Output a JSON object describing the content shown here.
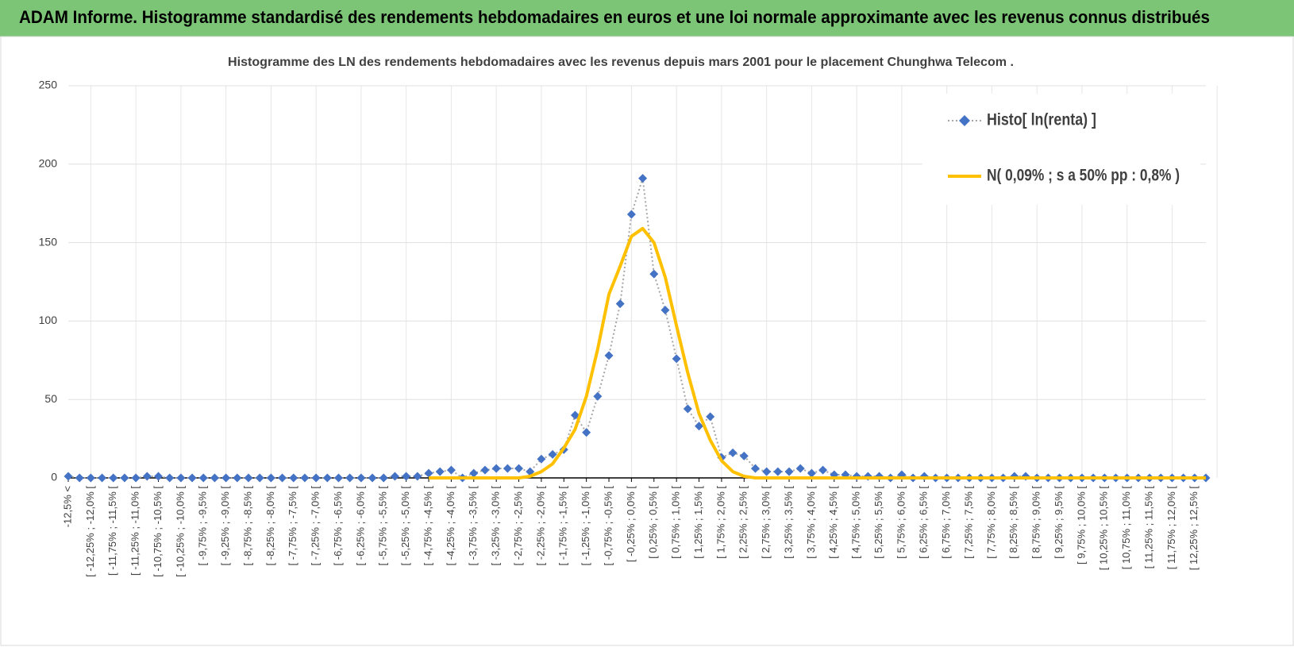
{
  "header": {
    "title": "ADAM Informe. Histogramme standardisé des rendements hebdomadaires en euros et une loi normale approximante avec les revenus connus distribués"
  },
  "chart_data": {
    "type": "line",
    "title": "Histogramme  des LN des rendements hebdomadaires avec les revenus depuis mars 2001 pour le placement Chunghwa Telecom .",
    "categories": [
      "-12,5% <",
      null,
      "[ -12,25% ; -12,0% [",
      null,
      "[ -11,75% ; -11,5% [",
      null,
      "[ -11,25% ; -11,0% [",
      null,
      "[ -10,75% ; -10,5% [",
      null,
      "[ -10,25% ; -10,0% [",
      null,
      "[ -9,75% ; -9,5% [",
      null,
      "[ -9,25% ; -9,0% [",
      null,
      "[ -8,75% ; -8,5% [",
      null,
      "[ -8,25% ; -8,0% [",
      null,
      "[ -7,75% ; -7,5% [",
      null,
      "[ -7,25% ; -7,0% [",
      null,
      "[ -6,75% ; -6,5% [",
      null,
      "[ -6,25% ; -6,0% [",
      null,
      "[ -5,75% ; -5,5% [",
      null,
      "[ -5,25% ; -5,0% [",
      null,
      "[ -4,75% ; -4,5% [",
      null,
      "[ -4,25% ; -4,0% [",
      null,
      "[ -3,75% ; -3,5% [",
      null,
      "[ -3,25% ; -3,0% [",
      null,
      "[ -2,75% ; -2,5% [",
      null,
      "[ -2,25% ; -2,0% [",
      null,
      "[ -1,75% ; -1,5% [",
      null,
      "[ -1,25% ; -1,0% [",
      null,
      "[ -0,75% ; -0,5% [",
      null,
      "[ -0,25% ; 0,0% [",
      null,
      "[ 0,25% ; 0,5% [",
      null,
      "[ 0,75% ; 1,0% [",
      null,
      "[ 1,25% ; 1,5% [",
      null,
      "[ 1,75% ; 2,0% [",
      null,
      "[ 2,25% ; 2,5% [",
      null,
      "[ 2,75% ; 3,0% [",
      null,
      "[ 3,25% ; 3,5% [",
      null,
      "[ 3,75% ; 4,0% [",
      null,
      "[ 4,25% ; 4,5% [",
      null,
      "[ 4,75% ; 5,0% [",
      null,
      "[ 5,25% ; 5,5% [",
      null,
      "[ 5,75% ; 6,0% [",
      null,
      "[ 6,25% ; 6,5% [",
      null,
      "[ 6,75% ; 7,0% [",
      null,
      "[ 7,25% ; 7,5% [",
      null,
      "[ 7,75% ; 8,0% [",
      null,
      "[ 8,25% ; 8,5% [",
      null,
      "[ 8,75% ; 9,0% [",
      null,
      "[ 9,25% ; 9,5% [",
      null,
      "[ 9,75% ; 10,0% [",
      null,
      "[ 10,25% ; 10,5% [",
      null,
      "[ 10,75% ; 11,0% [",
      null,
      "[ 11,25% ; 11,5% [",
      null,
      "[ 11,75% ; 12,0% [",
      null,
      "[ 12,25% ; 12,5% [",
      null
    ],
    "series": [
      {
        "name": "Histo[ ln(renta) ]",
        "color": "#4472c4",
        "style": "markers-dotted",
        "values": [
          1,
          0,
          0,
          0,
          0,
          0,
          0,
          1,
          1,
          0,
          0,
          0,
          0,
          0,
          0,
          0,
          0,
          0,
          0,
          0,
          0,
          0,
          0,
          0,
          0,
          0,
          0,
          0,
          0,
          1,
          1,
          1,
          3,
          4,
          5,
          0,
          3,
          5,
          6,
          6,
          6,
          4,
          12,
          15,
          18,
          40,
          29,
          52,
          78,
          111,
          168,
          191,
          130,
          107,
          76,
          44,
          33,
          39,
          13,
          16,
          14,
          6,
          4,
          4,
          4,
          6,
          3,
          5,
          2,
          2,
          1,
          1,
          1,
          0,
          2,
          0,
          1,
          0,
          0,
          0,
          0,
          0,
          0,
          0,
          1,
          1,
          0,
          0,
          0,
          0,
          0,
          0,
          0,
          0,
          0,
          0,
          0,
          0,
          0,
          0,
          0,
          0
        ]
      },
      {
        "name": "N( 0,09% ; s a 50% pp : 0,8% )",
        "color": "#ffc000",
        "style": "line",
        "values": [
          null,
          null,
          null,
          null,
          null,
          null,
          null,
          null,
          null,
          null,
          null,
          null,
          null,
          null,
          null,
          null,
          null,
          null,
          null,
          null,
          null,
          null,
          null,
          null,
          null,
          null,
          null,
          null,
          null,
          null,
          null,
          null,
          0,
          0,
          0,
          0,
          0,
          0,
          0,
          0,
          0,
          1,
          4,
          9,
          19,
          31,
          52,
          82,
          117,
          135,
          154,
          159,
          150,
          128,
          97,
          67,
          41,
          24,
          11,
          4,
          1,
          0,
          0,
          0,
          0,
          0,
          0,
          0,
          0,
          0,
          0,
          0,
          0,
          0,
          0,
          0,
          0,
          0,
          0,
          0,
          0,
          0,
          0,
          0,
          0,
          0,
          0,
          0,
          0,
          0,
          0,
          0,
          0,
          0,
          0,
          0,
          0,
          0,
          0,
          0,
          0,
          0
        ]
      }
    ],
    "ylim": [
      0,
      250
    ],
    "yticks": [
      0,
      50,
      100,
      150,
      200,
      250
    ],
    "grid": true,
    "legend": "top-right"
  }
}
